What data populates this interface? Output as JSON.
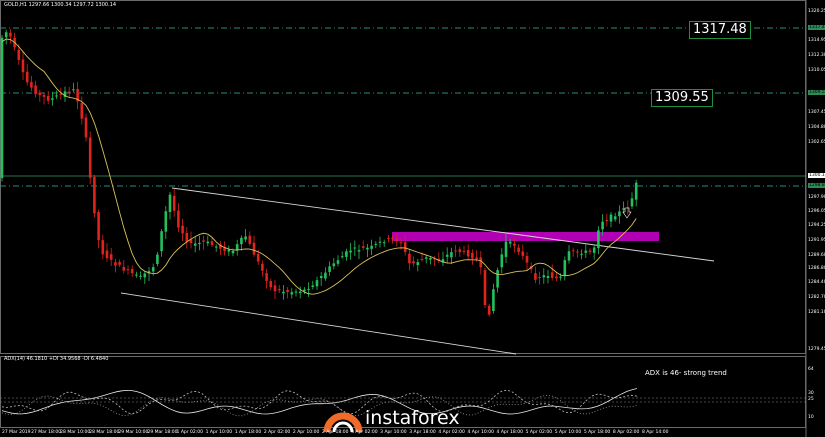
{
  "header": {
    "symbol": "GOLD,H1",
    "ohlc": "1297.66 1300.34 1297.72 1300.14",
    "indicator": "ADX(14) 46.1810 +DI 34.9568 -DI 6.4840"
  },
  "levels": {
    "upper": "1317.48",
    "middle": "1309.55",
    "current_price": "1300.14",
    "line_label": "1298.88"
  },
  "adx_note": "ADX is 46- strong trend",
  "watermark": "instaforex",
  "price_axis": [
    "1320.25",
    "1317.48",
    "1314.95",
    "1312.30",
    "1310.05",
    "1309.55",
    "1307.45",
    "1304.80",
    "1302.65",
    "1300.14",
    "1298.88",
    "1297.90",
    "1296.05",
    "1294.25",
    "1291.95",
    "1289.60",
    "1286.80",
    "1284.40",
    "1282.70",
    "1281.10",
    "1279.45"
  ],
  "adx_axis": [
    "64",
    "30",
    "25",
    "10"
  ],
  "time_axis": [
    "27 Mar 2019",
    "27 Mar 18:00",
    "28 Mar 10:00",
    "28 Mar 18:00",
    "29 Mar 10:00",
    "29 Mar 18:00",
    "1 Apr 02:00",
    "1 Apr 10:00",
    "1 Apr 18:00",
    "2 Apr 02:00",
    "2 Apr 10:00",
    "2 Apr 18:00",
    "3 Apr 02:00",
    "3 Apr 10:00",
    "3 Apr 18:00",
    "4 Apr 02:00",
    "4 Apr 10:00",
    "4 Apr 18:00",
    "5 Apr 02:00",
    "5 Apr 10:00",
    "5 Apr 18:00",
    "8 Apr 02:00",
    "8 Apr 14:00"
  ],
  "colors": {
    "bull": "#22c15e",
    "bear": "#e0231c",
    "ma": "#d7c25b",
    "level": "#2a8a7a",
    "zone": "#b100b3",
    "channel": "#d8d8d8",
    "watermark_brand": "#f06a2a"
  }
}
